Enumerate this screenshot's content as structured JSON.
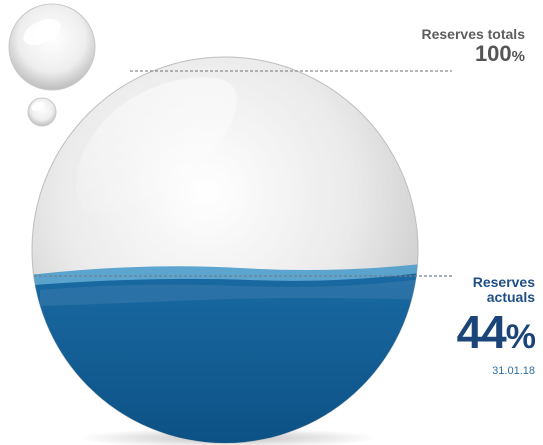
{
  "reserves_total": {
    "title": "Reserves totals",
    "value": "100",
    "unit": "%"
  },
  "reserves_actual": {
    "title_line1": "Reserves",
    "title_line2": "actuals",
    "value": "44",
    "unit": "%",
    "date": "31.01.18",
    "fill_fraction": 0.44
  },
  "colors": {
    "water": "#0f5f96",
    "water_surface": "#4a9ccb",
    "sphere": "#e6e6e6",
    "accent_text": "#1b4479",
    "neutral_text": "#555555"
  }
}
